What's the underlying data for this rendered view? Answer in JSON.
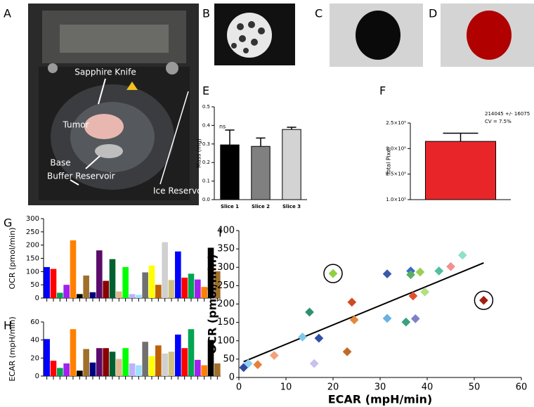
{
  "panel_labels": [
    "A",
    "B",
    "C",
    "D",
    "E",
    "F",
    "G",
    "H",
    "I"
  ],
  "photo_labels": [
    "Sapphire Knife",
    "Tumor",
    "Base",
    "Buffer Reservoir",
    "Ice Reservoir"
  ],
  "chart_data": [
    {
      "type": "bar",
      "ylabel": "Mass (mg)",
      "annotation": "ns",
      "categories": [
        "Slice 1",
        "Slice 2",
        "Slice 3"
      ],
      "values": [
        0.295,
        0.287,
        0.378
      ],
      "errors": [
        0.08,
        0.045,
        0.012
      ],
      "colors": [
        "#000000",
        "#808080",
        "#d3d3d3"
      ],
      "ylim": [
        0,
        0.5
      ],
      "yticks": [
        {
          "value": 0,
          "label": "0.0"
        },
        0.1,
        0.2,
        0.3,
        0.4,
        0.5
      ]
    },
    {
      "type": "bar",
      "ylabel": "Total Pixel",
      "annotation": [
        "214045 +/- 16075",
        "CV = 7.5%"
      ],
      "categories": [
        null
      ],
      "values": [
        214045
      ],
      "errors": [
        16075
      ],
      "colors": [
        "#e8262a"
      ],
      "ylim": [
        100000,
        250000
      ],
      "yticks": [
        {
          "value": 100000,
          "label": "1.0×10⁵"
        },
        {
          "value": 150000,
          "label": "1.5×10⁵"
        },
        {
          "value": 200000,
          "label": "2.0×10⁵"
        },
        {
          "value": 250000,
          "label": "2.5×10⁵"
        }
      ]
    },
    {
      "type": "bar",
      "ylabel": "OCR (pmol/min)",
      "categories": [
        null,
        null,
        null,
        null,
        null,
        null,
        null,
        null,
        null,
        null,
        null,
        null,
        null,
        null,
        null,
        null,
        null,
        null,
        null,
        null,
        null,
        null,
        null,
        null,
        null,
        null,
        null
      ],
      "values": [
        117,
        110,
        20,
        50,
        218,
        15,
        85,
        22,
        180,
        65,
        147,
        25,
        117,
        15,
        12,
        97,
        123,
        50,
        211,
        68,
        176,
        77,
        92,
        70,
        42,
        190,
        101
      ],
      "colors": [
        "#0000ff",
        "#ff0000",
        "#00a651",
        "#a020f0",
        "#ff8000",
        "#000000",
        "#a0702a",
        "#000080",
        "#5b0b6b",
        "#8b0000",
        "#006030",
        "#e0b890",
        "#00ff00",
        "#c0b0ff",
        "#a0e0ff",
        "#707070",
        "#ffff00",
        "#c06000",
        "#d0d0d0",
        "#d0c080",
        "#0000ff",
        "#ff0000",
        "#00a651",
        "#a020f0",
        "#ff8000",
        "#000000",
        "#a0702a"
      ],
      "ylim": [
        0,
        300
      ],
      "yticks": [
        0,
        50,
        100,
        150,
        200,
        250,
        300
      ]
    },
    {
      "type": "bar",
      "ylabel": "ECAR (mpH/min)",
      "categories": [
        null,
        null,
        null,
        null,
        null,
        null,
        null,
        null,
        null,
        null,
        null,
        null,
        null,
        null,
        null,
        null,
        null,
        null,
        null,
        null,
        null,
        null,
        null,
        null,
        null,
        null,
        null
      ],
      "values": [
        41,
        17,
        9,
        14,
        52,
        6,
        30,
        15,
        31,
        31,
        27,
        19,
        31,
        14,
        12,
        38,
        22,
        34,
        25,
        27,
        46,
        31,
        52,
        18,
        12,
        40,
        14
      ],
      "colors": [
        "#0000ff",
        "#ff0000",
        "#00a651",
        "#a020f0",
        "#ff8000",
        "#000000",
        "#a0702a",
        "#000080",
        "#5b0b6b",
        "#8b0000",
        "#006030",
        "#e0b890",
        "#00ff00",
        "#c0b0ff",
        "#a0e0ff",
        "#707070",
        "#ffff00",
        "#c06000",
        "#d0d0d0",
        "#d0c080",
        "#0000ff",
        "#ff0000",
        "#00a651",
        "#a020f0",
        "#ff8000",
        "#000000",
        "#a0702a"
      ],
      "ylim": [
        0,
        60
      ],
      "yticks": [
        0,
        20,
        40,
        60
      ]
    },
    {
      "type": "scatter",
      "xlabel": "ECAR (mpH/min)",
      "ylabel": "OCR (pmol/min)",
      "x": [
        1,
        2,
        4,
        7.5,
        13.5,
        15,
        16,
        17,
        20,
        23,
        24,
        24.5,
        31.5,
        31.5,
        35.5,
        36.5,
        36.5,
        37.5,
        37,
        38.5,
        39.5,
        42.5,
        45,
        47.5,
        52
      ],
      "y": [
        27,
        38,
        35,
        60,
        110,
        178,
        38,
        107,
        283,
        70,
        205,
        157,
        282,
        161,
        151,
        290,
        280,
        160,
        222,
        287,
        233,
        290,
        302,
        333,
        210
      ],
      "colors": [
        "#2e4aa0",
        "#8fd0f0",
        "#e8803a",
        "#f4a27a",
        "#7fc8e8",
        "#2e9070",
        "#c8c0f0",
        "#3050a8",
        "#8fd040",
        "#c06a2a",
        "#d04a20",
        "#e08a3a",
        "#3a5aa8",
        "#6ab0e0",
        "#3aa080",
        "#3a6ac8",
        "#5ab060",
        "#8080c8",
        "#e05030",
        "#9ad050",
        "#b0e080",
        "#50c0a0",
        "#f09090",
        "#90e0c8",
        "#a02010"
      ],
      "trendline": {
        "x": [
          1,
          52
        ],
        "y": [
          43,
          312
        ]
      },
      "circled_points": [
        8,
        24
      ],
      "xlim": [
        0,
        60
      ],
      "xticks": [
        0,
        10,
        20,
        30,
        40,
        50,
        60
      ],
      "ylim": [
        0,
        400
      ],
      "yticks": [
        0,
        50,
        100,
        150,
        200,
        250,
        300,
        350,
        400
      ]
    }
  ]
}
